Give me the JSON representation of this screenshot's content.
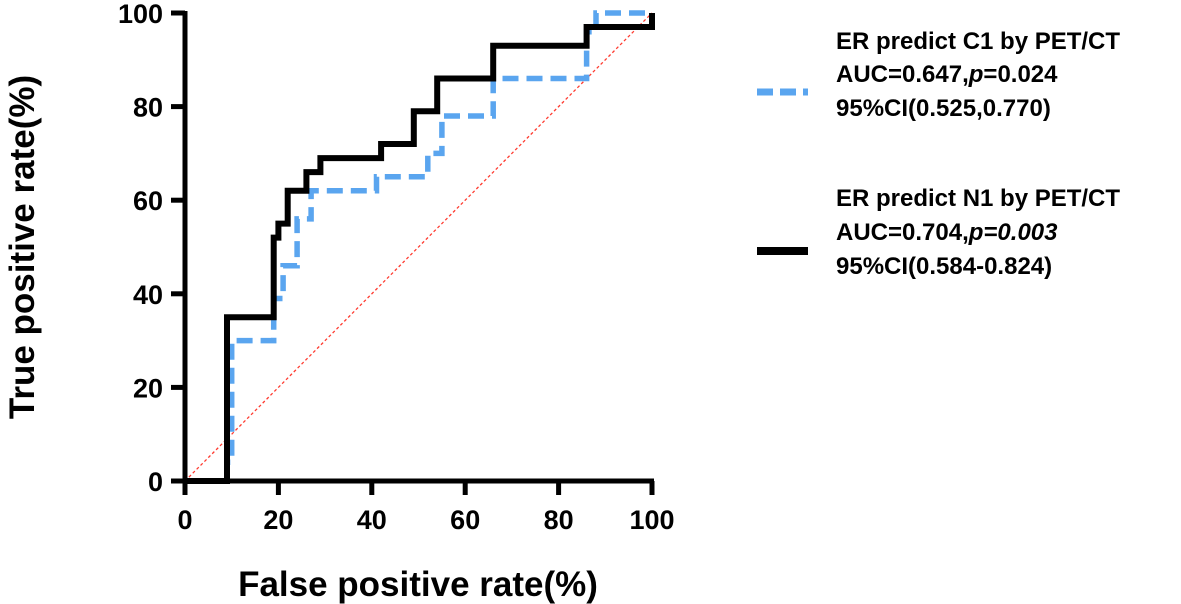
{
  "chart_data": {
    "type": "line",
    "title": "",
    "xlabel": "False positive rate(%)",
    "ylabel": "True positive rate(%)",
    "xlim": [
      0,
      100
    ],
    "ylim": [
      0,
      100
    ],
    "xticks": [
      0,
      20,
      40,
      60,
      80,
      100
    ],
    "yticks": [
      0,
      20,
      40,
      60,
      80,
      100
    ],
    "xtick_labels": [
      "0",
      "20",
      "40",
      "60",
      "80",
      "100"
    ],
    "ytick_labels": [
      "0",
      "20",
      "40",
      "60",
      "80",
      "100"
    ],
    "grid": false,
    "legend_position": "right",
    "reference_line": {
      "name": "chance",
      "color": "#ff3b30",
      "style": "dotted",
      "x": [
        0,
        100
      ],
      "y": [
        0,
        100
      ]
    },
    "series": [
      {
        "name": "ER predict C1 by PET/CT",
        "color": "#5aa5ef",
        "style": "dashed",
        "legend_lines": [
          {
            "segments": [
              {
                "text": "ER predict C1 by PET/CT",
                "italic": false
              }
            ]
          },
          {
            "segments": [
              {
                "text": "AUC=0.647,",
                "italic": false
              },
              {
                "text": "p",
                "italic": true
              },
              {
                "text": "=0.024",
                "italic": false
              }
            ]
          },
          {
            "segments": [
              {
                "text": "95%CI(0.525,0.770)",
                "italic": false
              }
            ]
          }
        ],
        "x": [
          0,
          9,
          9,
          10,
          10,
          19,
          19,
          21,
          21,
          24,
          24,
          27,
          27,
          41,
          41,
          52,
          52,
          55,
          55,
          66,
          66,
          86,
          86,
          88,
          88,
          100
        ],
        "y": [
          0,
          0,
          4,
          4,
          30,
          30,
          39,
          39,
          46,
          46,
          56,
          56,
          62,
          62,
          65,
          65,
          70,
          70,
          78,
          78,
          86,
          86,
          96,
          96,
          100,
          100
        ]
      },
      {
        "name": "ER predict N1 by PET/CT",
        "color": "#000000",
        "style": "solid",
        "legend_lines": [
          {
            "segments": [
              {
                "text": "ER predict N1 by PET/CT",
                "italic": false
              }
            ]
          },
          {
            "segments": [
              {
                "text": "AUC=0.704,",
                "italic": false
              },
              {
                "text": "p=0.003",
                "italic": true
              }
            ]
          },
          {
            "segments": [
              {
                "text": "95%CI(0.584-0.824)",
                "italic": false
              }
            ]
          }
        ],
        "x": [
          0,
          9,
          9,
          19,
          19,
          20,
          20,
          22,
          22,
          26,
          26,
          29,
          29,
          42,
          42,
          49,
          49,
          54,
          54,
          66,
          66,
          86,
          86,
          100,
          100
        ],
        "y": [
          0,
          0,
          35,
          35,
          52,
          52,
          55,
          55,
          62,
          62,
          66,
          66,
          69,
          69,
          72,
          72,
          79,
          79,
          86,
          86,
          93,
          93,
          97,
          97,
          100
        ]
      }
    ]
  }
}
